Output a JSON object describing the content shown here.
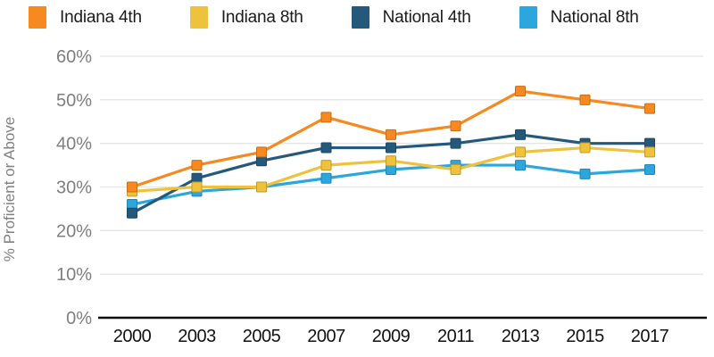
{
  "chart_data": {
    "type": "line",
    "categories": [
      "2000",
      "2003",
      "2005",
      "2007",
      "2009",
      "2011",
      "2013",
      "2015",
      "2017"
    ],
    "series": [
      {
        "name": "Indiana 4th",
        "color": "#F6891F",
        "values": [
          30,
          35,
          38,
          46,
          42,
          44,
          52,
          50,
          48
        ]
      },
      {
        "name": "Indiana 8th",
        "color": "#EFC23C",
        "values": [
          29,
          30,
          30,
          35,
          36,
          34,
          38,
          39,
          38
        ]
      },
      {
        "name": "National 4th",
        "color": "#25597B",
        "values": [
          24,
          32,
          36,
          39,
          39,
          40,
          42,
          40,
          40
        ]
      },
      {
        "name": "National 8th",
        "color": "#2BA7DE",
        "values": [
          26,
          29,
          30,
          32,
          34,
          35,
          35,
          33,
          34
        ]
      }
    ],
    "title": "",
    "xlabel": "",
    "ylabel": "% Proficient or Above",
    "ylim": [
      0,
      60
    ],
    "ytick_step": 10,
    "ytick_labels": [
      "0%",
      "10%",
      "20%",
      "30%",
      "40%",
      "50%",
      "60%"
    ],
    "grid": true,
    "legend_position": "top",
    "marker": "square",
    "colors": {
      "tick_label": "#7f7f7f",
      "axis_label": "#808080",
      "x_label": "#121212",
      "gridline": "#e5e5e5",
      "axis_line": "#0d0d0d"
    }
  }
}
